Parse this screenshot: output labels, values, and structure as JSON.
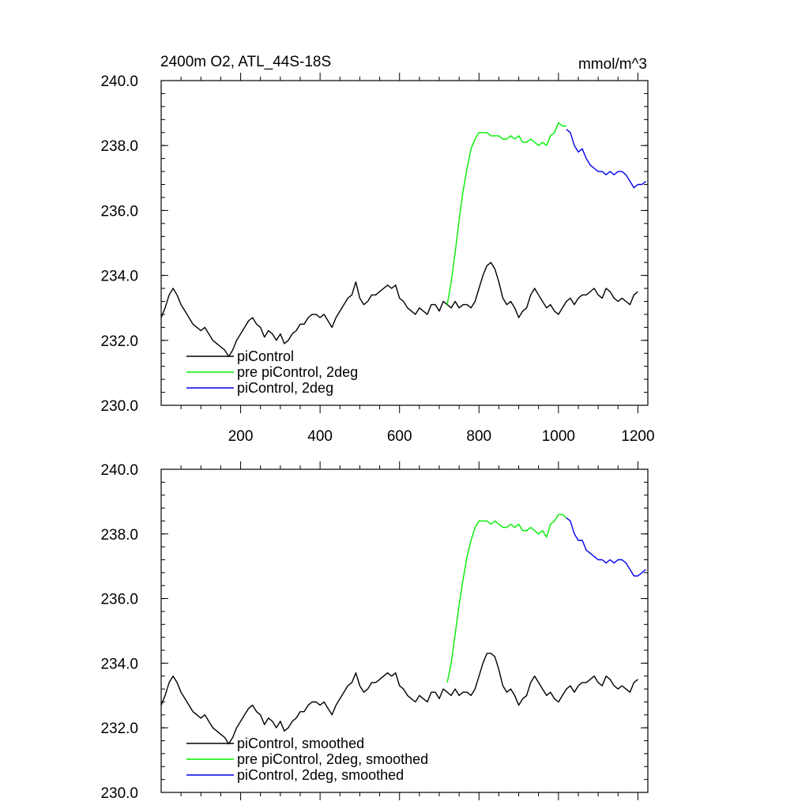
{
  "chart_data": [
    {
      "type": "line",
      "title_left": "2400m O2, ATL_44S-18S",
      "title_right": "mmol/m^3",
      "xlim": [
        0,
        1225
      ],
      "ylim": [
        230,
        240
      ],
      "x_ticks": [
        200,
        400,
        600,
        800,
        1000,
        1200
      ],
      "x_tick_labels": [
        "200",
        "400",
        "600",
        "800",
        "1000",
        "1200"
      ],
      "y_ticks": [
        230,
        232,
        234,
        236,
        238,
        240
      ],
      "y_tick_labels": [
        "230.0",
        "232.0",
        "234.0",
        "236.0",
        "238.0",
        "240.0"
      ],
      "legend_position": "bottom-left",
      "series": [
        {
          "name": "piControl",
          "color": "#000000",
          "x": [
            0,
            10,
            20,
            30,
            40,
            50,
            60,
            70,
            80,
            90,
            100,
            110,
            120,
            130,
            140,
            150,
            160,
            170,
            180,
            190,
            200,
            210,
            220,
            230,
            240,
            250,
            260,
            270,
            280,
            290,
            300,
            310,
            320,
            330,
            340,
            350,
            360,
            370,
            380,
            390,
            400,
            410,
            420,
            430,
            440,
            450,
            460,
            470,
            480,
            490,
            500,
            510,
            520,
            530,
            540,
            550,
            560,
            570,
            580,
            590,
            600,
            610,
            620,
            630,
            640,
            650,
            660,
            670,
            680,
            690,
            700,
            710,
            720,
            730,
            740,
            750,
            760,
            770,
            780,
            790,
            800,
            810,
            820,
            830,
            840,
            850,
            860,
            870,
            880,
            890,
            900,
            910,
            920,
            930,
            940,
            950,
            960,
            970,
            980,
            990,
            1000,
            1010,
            1020,
            1030,
            1040,
            1050,
            1060,
            1070,
            1080,
            1090,
            1100,
            1110,
            1120,
            1130,
            1140,
            1150,
            1160,
            1170,
            1180,
            1190,
            1200
          ],
          "y": [
            232.7,
            233.0,
            233.4,
            233.6,
            233.4,
            233.1,
            232.9,
            232.7,
            232.5,
            232.4,
            232.3,
            232.4,
            232.2,
            232.0,
            231.9,
            231.8,
            231.7,
            231.5,
            231.7,
            232.0,
            232.2,
            232.4,
            232.6,
            232.7,
            232.5,
            232.4,
            232.1,
            232.3,
            232.2,
            232.0,
            232.2,
            231.9,
            232.0,
            232.2,
            232.3,
            232.5,
            232.5,
            232.7,
            232.8,
            232.8,
            232.7,
            232.8,
            232.6,
            232.4,
            232.7,
            232.9,
            233.1,
            233.3,
            233.4,
            233.8,
            233.3,
            233.1,
            233.2,
            233.4,
            233.4,
            233.5,
            233.6,
            233.7,
            233.6,
            233.7,
            233.3,
            233.2,
            233.0,
            232.9,
            232.8,
            233.0,
            232.9,
            232.8,
            233.1,
            233.1,
            232.9,
            233.2,
            233.1,
            233.0,
            233.2,
            233.0,
            233.1,
            233.1,
            233.0,
            233.2,
            233.6,
            234.0,
            234.3,
            234.4,
            234.2,
            233.8,
            233.3,
            233.1,
            233.2,
            233.0,
            232.7,
            232.9,
            233.0,
            233.4,
            233.6,
            233.4,
            233.2,
            233.0,
            233.1,
            232.9,
            232.8,
            233.0,
            233.2,
            233.3,
            233.1,
            233.3,
            233.4,
            233.4,
            233.5,
            233.6,
            233.4,
            233.3,
            233.6,
            233.5,
            233.3,
            233.2,
            233.3,
            233.2,
            233.1,
            233.4,
            233.5
          ]
        },
        {
          "name": "pre piControl, 2deg",
          "color": "#00ee00",
          "x": [
            720,
            730,
            740,
            750,
            760,
            770,
            780,
            790,
            800,
            810,
            820,
            830,
            840,
            850,
            860,
            870,
            880,
            890,
            900,
            910,
            920,
            930,
            940,
            950,
            960,
            970,
            980,
            990,
            1000,
            1010,
            1020
          ],
          "y": [
            233.1,
            233.8,
            234.7,
            235.7,
            236.6,
            237.3,
            237.9,
            238.2,
            238.4,
            238.4,
            238.4,
            238.3,
            238.3,
            238.3,
            238.2,
            238.2,
            238.3,
            238.2,
            238.3,
            238.1,
            238.1,
            238.2,
            238.1,
            238.0,
            238.1,
            238.0,
            238.3,
            238.4,
            238.7,
            238.6,
            238.6
          ]
        },
        {
          "name": "piControl, 2deg",
          "color": "#0000ee",
          "x": [
            1020,
            1030,
            1040,
            1050,
            1060,
            1070,
            1080,
            1090,
            1100,
            1110,
            1120,
            1130,
            1140,
            1150,
            1160,
            1170,
            1180,
            1190,
            1200,
            1210,
            1220
          ],
          "y": [
            238.5,
            238.4,
            238.0,
            237.8,
            237.9,
            237.6,
            237.4,
            237.3,
            237.2,
            237.2,
            237.1,
            237.2,
            237.1,
            237.2,
            237.2,
            237.1,
            236.9,
            236.7,
            236.8,
            236.8,
            236.9
          ]
        }
      ]
    },
    {
      "type": "line",
      "xlim": [
        0,
        1225
      ],
      "ylim": [
        230,
        240
      ],
      "y_ticks": [
        230,
        232,
        234,
        236,
        238,
        240
      ],
      "y_tick_labels": [
        "230.0",
        "232.0",
        "234.0",
        "236.0",
        "238.0",
        "240.0"
      ],
      "legend_position": "bottom-left",
      "series": [
        {
          "name": "piControl, smoothed",
          "color": "#000000",
          "x": [
            0,
            10,
            20,
            30,
            40,
            50,
            60,
            70,
            80,
            90,
            100,
            110,
            120,
            130,
            140,
            150,
            160,
            170,
            180,
            190,
            200,
            210,
            220,
            230,
            240,
            250,
            260,
            270,
            280,
            290,
            300,
            310,
            320,
            330,
            340,
            350,
            360,
            370,
            380,
            390,
            400,
            410,
            420,
            430,
            440,
            450,
            460,
            470,
            480,
            490,
            500,
            510,
            520,
            530,
            540,
            550,
            560,
            570,
            580,
            590,
            600,
            610,
            620,
            630,
            640,
            650,
            660,
            670,
            680,
            690,
            700,
            710,
            720,
            730,
            740,
            750,
            760,
            770,
            780,
            790,
            800,
            810,
            820,
            830,
            840,
            850,
            860,
            870,
            880,
            890,
            900,
            910,
            920,
            930,
            940,
            950,
            960,
            970,
            980,
            990,
            1000,
            1010,
            1020,
            1030,
            1040,
            1050,
            1060,
            1070,
            1080,
            1090,
            1100,
            1110,
            1120,
            1130,
            1140,
            1150,
            1160,
            1170,
            1180,
            1190,
            1200
          ],
          "y": [
            232.7,
            233.0,
            233.4,
            233.6,
            233.4,
            233.1,
            232.9,
            232.7,
            232.5,
            232.4,
            232.3,
            232.4,
            232.2,
            232.0,
            231.9,
            231.8,
            231.7,
            231.5,
            231.7,
            232.0,
            232.2,
            232.4,
            232.6,
            232.7,
            232.5,
            232.4,
            232.1,
            232.3,
            232.2,
            232.0,
            232.2,
            231.9,
            232.0,
            232.2,
            232.3,
            232.5,
            232.5,
            232.7,
            232.8,
            232.8,
            232.7,
            232.8,
            232.6,
            232.4,
            232.7,
            232.9,
            233.1,
            233.3,
            233.4,
            233.7,
            233.3,
            233.1,
            233.2,
            233.4,
            233.4,
            233.5,
            233.6,
            233.7,
            233.6,
            233.7,
            233.3,
            233.2,
            233.0,
            232.9,
            232.8,
            233.0,
            232.9,
            232.8,
            233.1,
            233.1,
            232.9,
            233.2,
            233.1,
            233.0,
            233.2,
            233.0,
            233.1,
            233.1,
            233.0,
            233.2,
            233.6,
            234.0,
            234.3,
            234.3,
            234.2,
            233.8,
            233.3,
            233.1,
            233.2,
            233.0,
            232.7,
            232.9,
            233.0,
            233.4,
            233.6,
            233.4,
            233.2,
            233.0,
            233.1,
            232.9,
            232.8,
            233.0,
            233.2,
            233.3,
            233.1,
            233.3,
            233.4,
            233.4,
            233.5,
            233.6,
            233.4,
            233.3,
            233.6,
            233.5,
            233.3,
            233.2,
            233.3,
            233.2,
            233.1,
            233.4,
            233.5
          ]
        },
        {
          "name": "pre piControl, 2deg, smoothed",
          "color": "#00ee00",
          "x": [
            720,
            730,
            740,
            750,
            760,
            770,
            780,
            790,
            800,
            810,
            820,
            830,
            840,
            850,
            860,
            870,
            880,
            890,
            900,
            910,
            920,
            930,
            940,
            950,
            960,
            970,
            980,
            990,
            1000,
            1010,
            1020
          ],
          "y": [
            233.4,
            234.0,
            234.9,
            235.8,
            236.6,
            237.3,
            237.8,
            238.2,
            238.4,
            238.4,
            238.4,
            238.3,
            238.4,
            238.3,
            238.2,
            238.2,
            238.3,
            238.2,
            238.3,
            238.1,
            238.1,
            238.2,
            238.1,
            238.0,
            238.1,
            237.9,
            238.3,
            238.4,
            238.6,
            238.6,
            238.5
          ]
        },
        {
          "name": "piControl, 2deg, smoothed",
          "color": "#0000ee",
          "x": [
            1020,
            1030,
            1040,
            1050,
            1060,
            1070,
            1080,
            1090,
            1100,
            1110,
            1120,
            1130,
            1140,
            1150,
            1160,
            1170,
            1180,
            1190,
            1200,
            1210,
            1220
          ],
          "y": [
            238.5,
            238.4,
            238.0,
            237.8,
            237.8,
            237.5,
            237.4,
            237.3,
            237.2,
            237.2,
            237.1,
            237.2,
            237.1,
            237.2,
            237.2,
            237.1,
            236.9,
            236.7,
            236.7,
            236.8,
            236.9
          ]
        }
      ]
    }
  ]
}
